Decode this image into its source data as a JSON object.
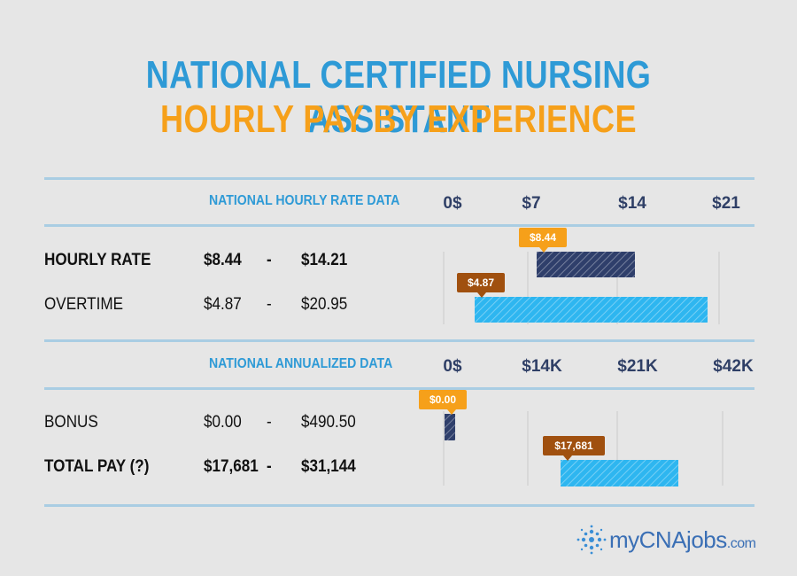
{
  "title": "NATIONAL CERTIFIED NURSING ASSISTANT",
  "subtitle": "HOURLY PAY BY EXPERIENCE",
  "brand": {
    "name": "myCNAjobs",
    "suffix": ".com"
  },
  "colors": {
    "title_blue": "#2e9ad6",
    "title_orange": "#f6a01a",
    "navy_bar": "#2f3f6b",
    "light_bar": "#2eb6f0",
    "callout_orange": "#f6a01a",
    "callout_brown": "#a0500f"
  },
  "sections": {
    "hourly": {
      "header": "NATIONAL HOURLY RATE DATA",
      "ticks": [
        "0$",
        "$7",
        "$14",
        "$21"
      ],
      "rows": [
        {
          "label": "HOURLY RATE",
          "low": "$8.44",
          "dash": "-",
          "high": "$14.21",
          "bold": true
        },
        {
          "label": "OVERTIME",
          "low": "$4.87",
          "dash": "-",
          "high": "$20.95",
          "bold": false
        }
      ]
    },
    "annual": {
      "header": "NATIONAL ANNUALIZED DATA",
      "ticks": [
        "0$",
        "$14K",
        "$21K",
        "$42K"
      ],
      "rows": [
        {
          "label": "BONUS",
          "low": "$0.00",
          "dash": "-",
          "high": "$490.50",
          "bold": false
        },
        {
          "label": "TOTAL PAY (?)",
          "low": "$17,681",
          "dash": "-",
          "high": "$31,144",
          "bold": true
        }
      ]
    }
  },
  "chart_data": [
    {
      "type": "bar",
      "title": "NATIONAL HOURLY RATE DATA",
      "x_ticks": [
        "0$",
        "$7",
        "$14",
        "$21"
      ],
      "xlim": [
        0,
        21
      ],
      "categories": [
        "HOURLY RATE",
        "OVERTIME"
      ],
      "series": [
        {
          "range": [
            8.44,
            14.21
          ],
          "callout": "$8.44",
          "color": "#2f3f6b"
        },
        {
          "range": [
            4.87,
            20.95
          ],
          "callout": "$4.87",
          "color": "#2eb6f0"
        }
      ]
    },
    {
      "type": "bar",
      "title": "NATIONAL ANNUALIZED DATA",
      "x_ticks": [
        "0$",
        "$14K",
        "$21K",
        "$42K"
      ],
      "categories": [
        "BONUS",
        "TOTAL PAY (?)"
      ],
      "series": [
        {
          "range": [
            0,
            490.5
          ],
          "callout": "$0.00",
          "color": "#2f3f6b"
        },
        {
          "range": [
            17681,
            31144
          ],
          "callout": "$17,681",
          "color": "#2eb6f0"
        }
      ]
    }
  ]
}
